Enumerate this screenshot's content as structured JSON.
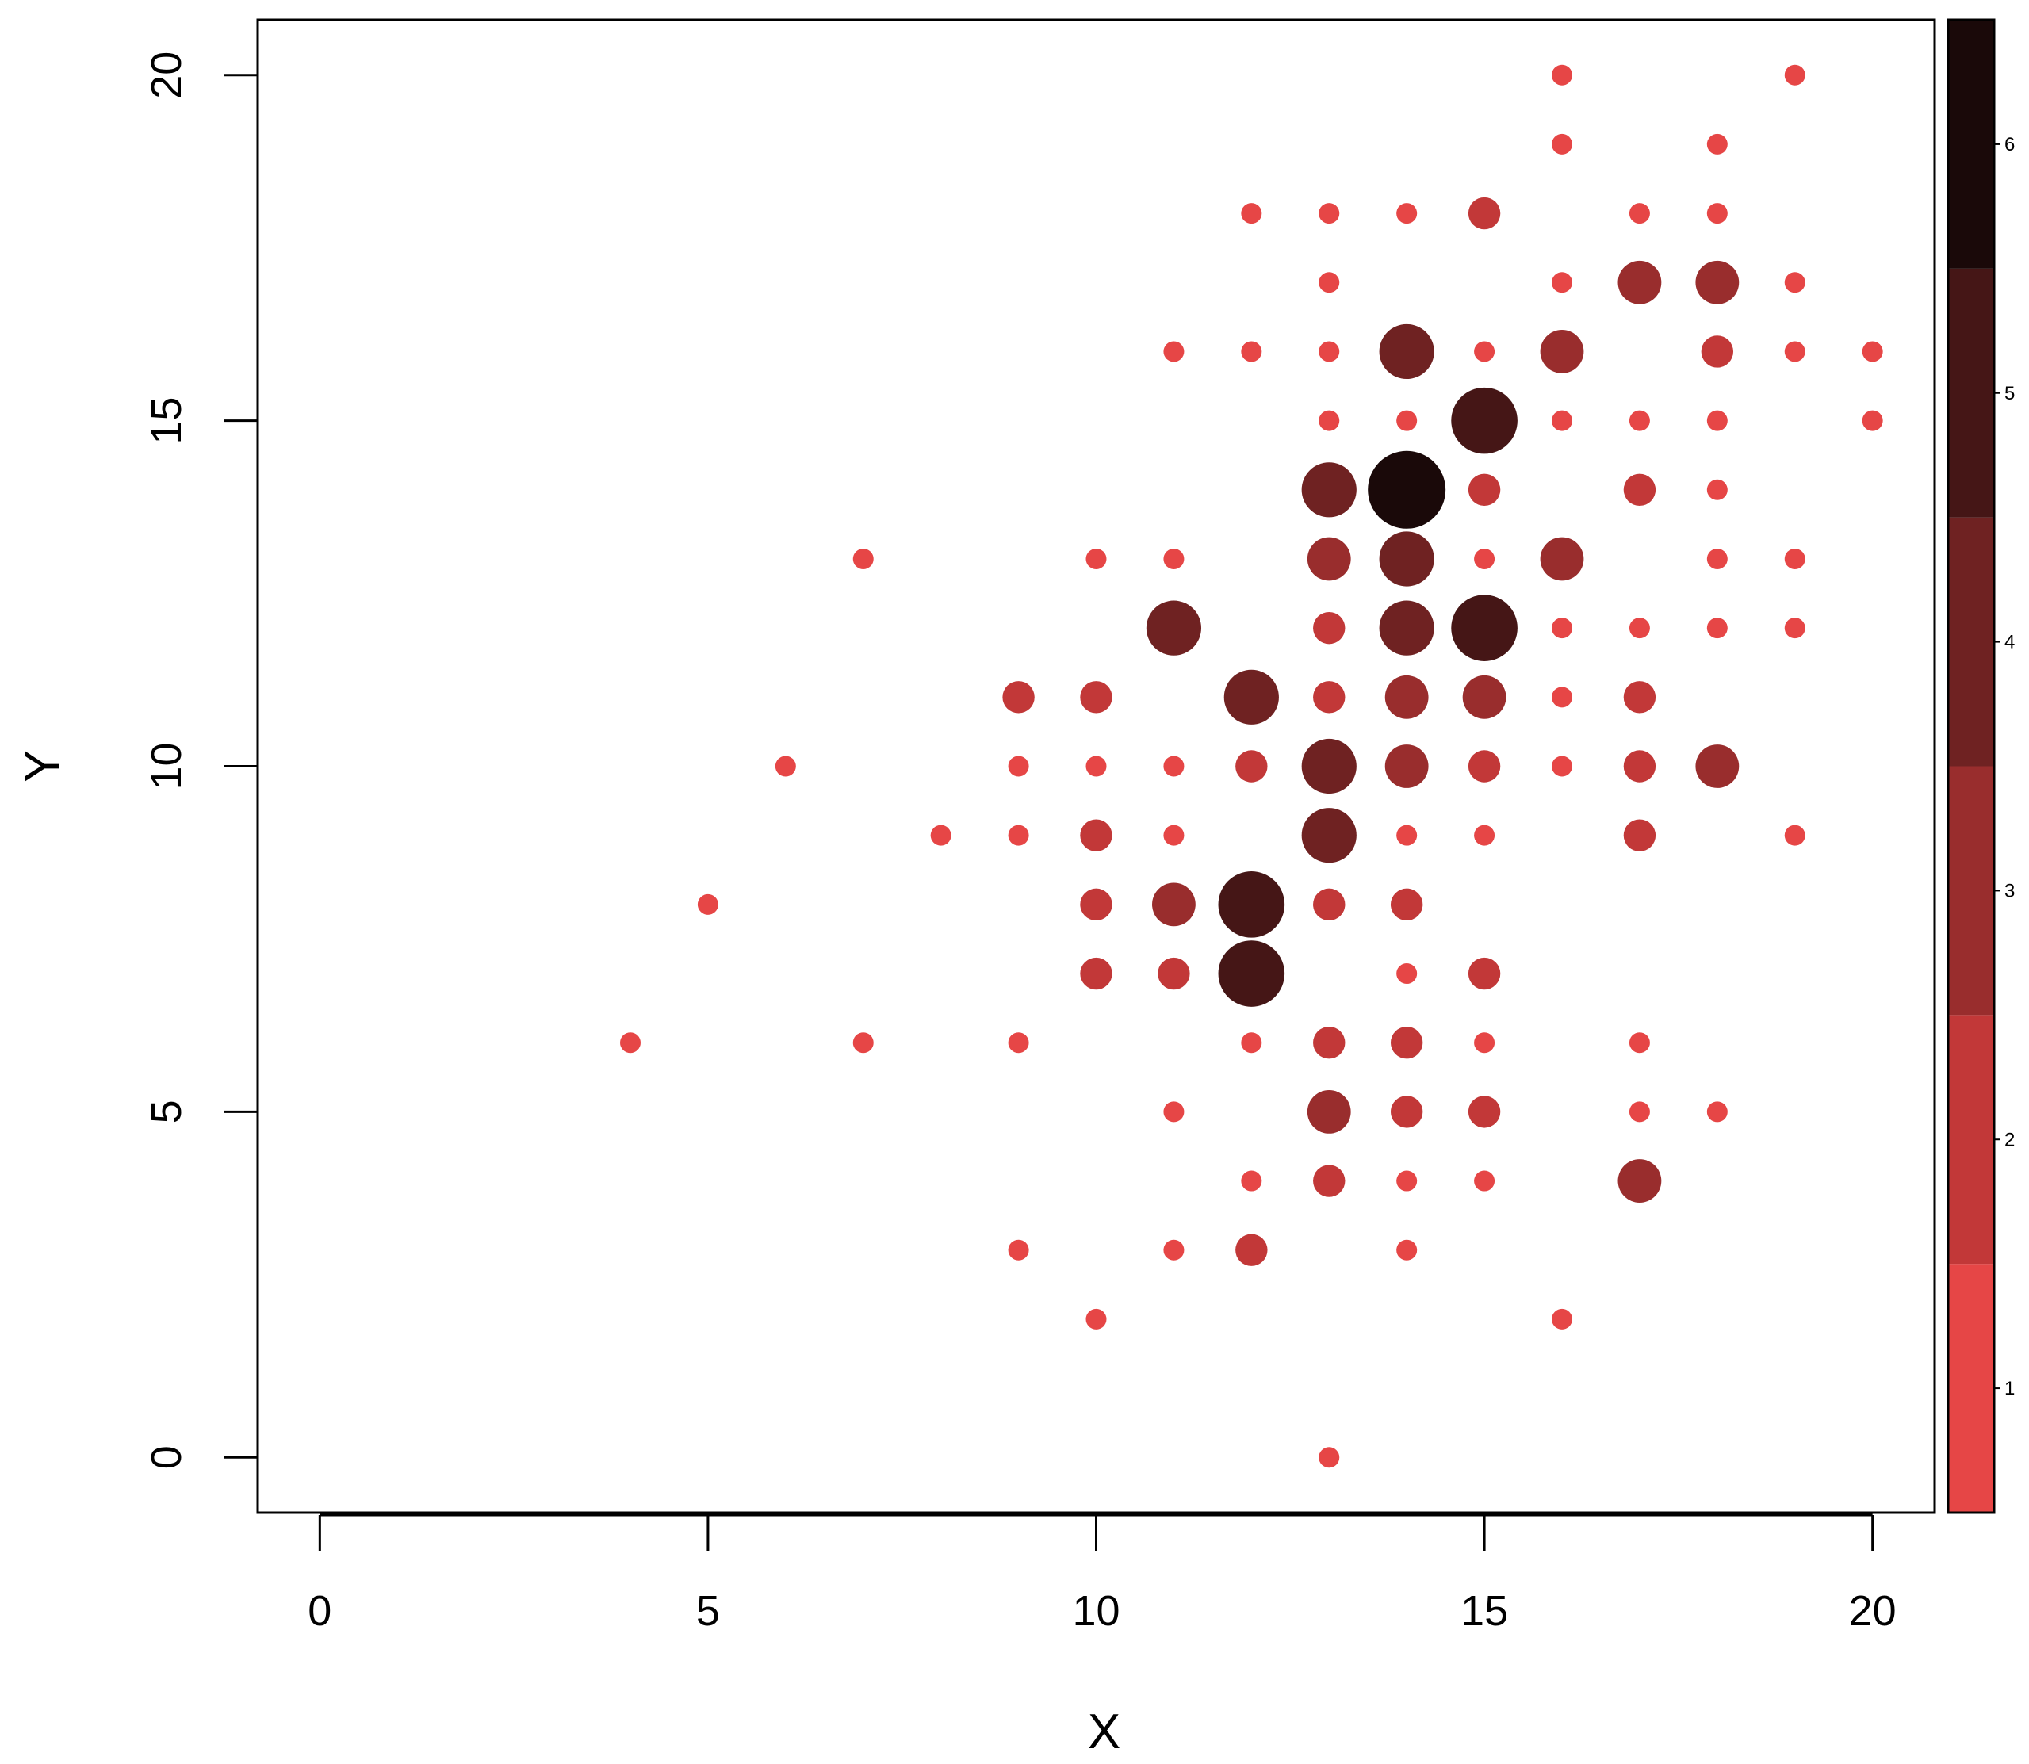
{
  "chart_data": {
    "type": "scatter",
    "title": "",
    "xlabel": "X",
    "ylabel": "Y",
    "xlim": [
      -0.8,
      20.8
    ],
    "ylim": [
      -0.8,
      20.8
    ],
    "x_ticks": [
      0,
      5,
      10,
      15,
      20
    ],
    "y_ticks": [
      0,
      5,
      10,
      15,
      20
    ],
    "x_tick_labels": [
      "0",
      "5",
      "10",
      "15",
      "20"
    ],
    "y_tick_labels": [
      "0",
      "5",
      "10",
      "15",
      "20"
    ],
    "grid": false,
    "size_and_color_encode": "count",
    "colorbar": {
      "range": [
        0.5,
        6.5
      ],
      "ticks": [
        1,
        2,
        3,
        4,
        5,
        6
      ],
      "tick_labels": [
        "1",
        "2",
        "3",
        "4",
        "5",
        "6"
      ],
      "colors": [
        "#E64646",
        "#C23838",
        "#992D2D",
        "#6F2222",
        "#451616",
        "#1A0909"
      ]
    },
    "points": [
      {
        "x": 16,
        "y": 20,
        "count": 1
      },
      {
        "x": 19,
        "y": 20,
        "count": 1
      },
      {
        "x": 16,
        "y": 19,
        "count": 1
      },
      {
        "x": 18,
        "y": 19,
        "count": 1
      },
      {
        "x": 12,
        "y": 18,
        "count": 1
      },
      {
        "x": 13,
        "y": 18,
        "count": 1
      },
      {
        "x": 14,
        "y": 18,
        "count": 1
      },
      {
        "x": 15,
        "y": 18,
        "count": 2
      },
      {
        "x": 17,
        "y": 18,
        "count": 1
      },
      {
        "x": 18,
        "y": 18,
        "count": 1
      },
      {
        "x": 13,
        "y": 17,
        "count": 1
      },
      {
        "x": 16,
        "y": 17,
        "count": 1
      },
      {
        "x": 17,
        "y": 17,
        "count": 3
      },
      {
        "x": 18,
        "y": 17,
        "count": 3
      },
      {
        "x": 19,
        "y": 17,
        "count": 1
      },
      {
        "x": 11,
        "y": 16,
        "count": 1
      },
      {
        "x": 12,
        "y": 16,
        "count": 1
      },
      {
        "x": 13,
        "y": 16,
        "count": 1
      },
      {
        "x": 14,
        "y": 16,
        "count": 4
      },
      {
        "x": 15,
        "y": 16,
        "count": 1
      },
      {
        "x": 16,
        "y": 16,
        "count": 3
      },
      {
        "x": 18,
        "y": 16,
        "count": 2
      },
      {
        "x": 19,
        "y": 16,
        "count": 1
      },
      {
        "x": 20,
        "y": 16,
        "count": 1
      },
      {
        "x": 13,
        "y": 15,
        "count": 1
      },
      {
        "x": 14,
        "y": 15,
        "count": 1
      },
      {
        "x": 15,
        "y": 15,
        "count": 5
      },
      {
        "x": 16,
        "y": 15,
        "count": 1
      },
      {
        "x": 17,
        "y": 15,
        "count": 1
      },
      {
        "x": 18,
        "y": 15,
        "count": 1
      },
      {
        "x": 20,
        "y": 15,
        "count": 1
      },
      {
        "x": 13,
        "y": 14,
        "count": 4
      },
      {
        "x": 14,
        "y": 14,
        "count": 6
      },
      {
        "x": 15,
        "y": 14,
        "count": 2
      },
      {
        "x": 17,
        "y": 14,
        "count": 2
      },
      {
        "x": 18,
        "y": 14,
        "count": 1
      },
      {
        "x": 7,
        "y": 13,
        "count": 1
      },
      {
        "x": 10,
        "y": 13,
        "count": 1
      },
      {
        "x": 11,
        "y": 13,
        "count": 1
      },
      {
        "x": 13,
        "y": 13,
        "count": 3
      },
      {
        "x": 14,
        "y": 13,
        "count": 4
      },
      {
        "x": 15,
        "y": 13,
        "count": 1
      },
      {
        "x": 16,
        "y": 13,
        "count": 3
      },
      {
        "x": 18,
        "y": 13,
        "count": 1
      },
      {
        "x": 19,
        "y": 13,
        "count": 1
      },
      {
        "x": 11,
        "y": 12,
        "count": 4
      },
      {
        "x": 13,
        "y": 12,
        "count": 2
      },
      {
        "x": 14,
        "y": 12,
        "count": 4
      },
      {
        "x": 15,
        "y": 12,
        "count": 5
      },
      {
        "x": 16,
        "y": 12,
        "count": 1
      },
      {
        "x": 17,
        "y": 12,
        "count": 1
      },
      {
        "x": 18,
        "y": 12,
        "count": 1
      },
      {
        "x": 19,
        "y": 12,
        "count": 1
      },
      {
        "x": 9,
        "y": 11,
        "count": 2
      },
      {
        "x": 10,
        "y": 11,
        "count": 2
      },
      {
        "x": 12,
        "y": 11,
        "count": 4
      },
      {
        "x": 13,
        "y": 11,
        "count": 2
      },
      {
        "x": 14,
        "y": 11,
        "count": 3
      },
      {
        "x": 15,
        "y": 11,
        "count": 3
      },
      {
        "x": 16,
        "y": 11,
        "count": 1
      },
      {
        "x": 17,
        "y": 11,
        "count": 2
      },
      {
        "x": 6,
        "y": 10,
        "count": 1
      },
      {
        "x": 9,
        "y": 10,
        "count": 1
      },
      {
        "x": 10,
        "y": 10,
        "count": 1
      },
      {
        "x": 11,
        "y": 10,
        "count": 1
      },
      {
        "x": 12,
        "y": 10,
        "count": 2
      },
      {
        "x": 13,
        "y": 10,
        "count": 4
      },
      {
        "x": 14,
        "y": 10,
        "count": 3
      },
      {
        "x": 15,
        "y": 10,
        "count": 2
      },
      {
        "x": 16,
        "y": 10,
        "count": 1
      },
      {
        "x": 17,
        "y": 10,
        "count": 2
      },
      {
        "x": 18,
        "y": 10,
        "count": 3
      },
      {
        "x": 8,
        "y": 9,
        "count": 1
      },
      {
        "x": 9,
        "y": 9,
        "count": 1
      },
      {
        "x": 10,
        "y": 9,
        "count": 2
      },
      {
        "x": 11,
        "y": 9,
        "count": 1
      },
      {
        "x": 13,
        "y": 9,
        "count": 4
      },
      {
        "x": 14,
        "y": 9,
        "count": 1
      },
      {
        "x": 15,
        "y": 9,
        "count": 1
      },
      {
        "x": 17,
        "y": 9,
        "count": 2
      },
      {
        "x": 19,
        "y": 9,
        "count": 1
      },
      {
        "x": 5,
        "y": 8,
        "count": 1
      },
      {
        "x": 10,
        "y": 8,
        "count": 2
      },
      {
        "x": 11,
        "y": 8,
        "count": 3
      },
      {
        "x": 12,
        "y": 8,
        "count": 5
      },
      {
        "x": 13,
        "y": 8,
        "count": 2
      },
      {
        "x": 14,
        "y": 8,
        "count": 2
      },
      {
        "x": 10,
        "y": 7,
        "count": 2
      },
      {
        "x": 11,
        "y": 7,
        "count": 2
      },
      {
        "x": 12,
        "y": 7,
        "count": 5
      },
      {
        "x": 14,
        "y": 7,
        "count": 1
      },
      {
        "x": 15,
        "y": 7,
        "count": 2
      },
      {
        "x": 4,
        "y": 6,
        "count": 1
      },
      {
        "x": 7,
        "y": 6,
        "count": 1
      },
      {
        "x": 9,
        "y": 6,
        "count": 1
      },
      {
        "x": 12,
        "y": 6,
        "count": 1
      },
      {
        "x": 13,
        "y": 6,
        "count": 2
      },
      {
        "x": 14,
        "y": 6,
        "count": 2
      },
      {
        "x": 15,
        "y": 6,
        "count": 1
      },
      {
        "x": 17,
        "y": 6,
        "count": 1
      },
      {
        "x": 11,
        "y": 5,
        "count": 1
      },
      {
        "x": 13,
        "y": 5,
        "count": 3
      },
      {
        "x": 14,
        "y": 5,
        "count": 2
      },
      {
        "x": 15,
        "y": 5,
        "count": 2
      },
      {
        "x": 17,
        "y": 5,
        "count": 1
      },
      {
        "x": 18,
        "y": 5,
        "count": 1
      },
      {
        "x": 12,
        "y": 4,
        "count": 1
      },
      {
        "x": 13,
        "y": 4,
        "count": 2
      },
      {
        "x": 14,
        "y": 4,
        "count": 1
      },
      {
        "x": 15,
        "y": 4,
        "count": 1
      },
      {
        "x": 17,
        "y": 4,
        "count": 3
      },
      {
        "x": 9,
        "y": 3,
        "count": 1
      },
      {
        "x": 11,
        "y": 3,
        "count": 1
      },
      {
        "x": 12,
        "y": 3,
        "count": 2
      },
      {
        "x": 14,
        "y": 3,
        "count": 1
      },
      {
        "x": 10,
        "y": 2,
        "count": 1
      },
      {
        "x": 16,
        "y": 2,
        "count": 1
      },
      {
        "x": 13,
        "y": 0,
        "count": 1
      }
    ]
  }
}
